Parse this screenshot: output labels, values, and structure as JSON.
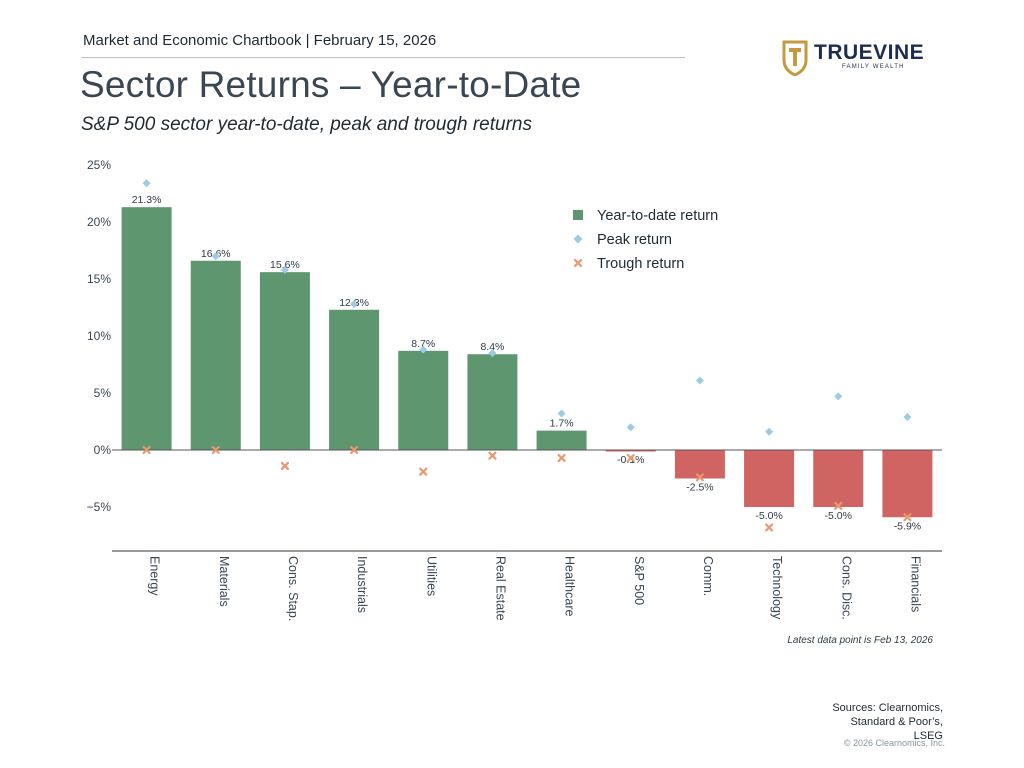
{
  "header": {
    "line": "Market and Economic Chartbook | February 15, 2026",
    "title": "Sector Returns – Year-to-Date",
    "subtitle": "S&P 500 sector year-to-date, peak and trough returns"
  },
  "logo": {
    "name": "TRUEVINE",
    "tagline": "FAMILY WEALTH",
    "shield_color": "#c39a3d",
    "text_color": "#1d2c4f"
  },
  "colors": {
    "positive_bar": "#5e9670",
    "negative_bar": "#d06462",
    "peak_marker": "#9ccbe3",
    "trough_marker": "#e99870",
    "axis": "#333333"
  },
  "chart_data": {
    "type": "bar",
    "categories": [
      "Energy",
      "Materials",
      "Cons. Stap.",
      "Industrials",
      "Utilities",
      "Real Estate",
      "Healthcare",
      "S&P 500",
      "Comm.",
      "Technology",
      "Cons. Disc.",
      "Financials"
    ],
    "series": [
      {
        "name": "Year-to-date return",
        "kind": "bar",
        "values": [
          21.3,
          16.6,
          15.6,
          12.3,
          8.7,
          8.4,
          1.7,
          -0.1,
          -2.5,
          -5.0,
          -5.0,
          -5.9
        ]
      },
      {
        "name": "Peak return",
        "kind": "marker",
        "marker": "diamond",
        "values": [
          23.4,
          17.0,
          15.8,
          12.8,
          8.8,
          8.5,
          3.2,
          2.0,
          6.1,
          1.6,
          4.7,
          2.9
        ]
      },
      {
        "name": "Trough return",
        "kind": "marker",
        "marker": "x",
        "values": [
          0.0,
          0.0,
          -1.4,
          0.0,
          -1.9,
          -0.5,
          -0.7,
          -0.7,
          -2.4,
          -6.8,
          -4.9,
          -5.9
        ]
      }
    ],
    "data_labels": [
      "21.3%",
      "16.6%",
      "15.6%",
      "12.3%",
      "8.7%",
      "8.4%",
      "1.7%",
      "-0.1%",
      "-2.5%",
      "-5.0%",
      "-5.0%",
      "-5.9%"
    ],
    "y_ticks": [
      "25%",
      "20%",
      "15%",
      "10%",
      "5%",
      "0%",
      "−5%"
    ],
    "y_tick_values": [
      25,
      20,
      15,
      10,
      5,
      0,
      -5
    ],
    "ylim": [
      -9,
      25
    ],
    "legend_position": "top-right",
    "grid": false
  },
  "footer": {
    "note": "Latest data point is Feb 13, 2026",
    "sources": [
      "Sources: Clearnomics,",
      "Standard & Poor’s,",
      "LSEG"
    ],
    "copyright": "© 2026 Clearnomics, Inc."
  }
}
